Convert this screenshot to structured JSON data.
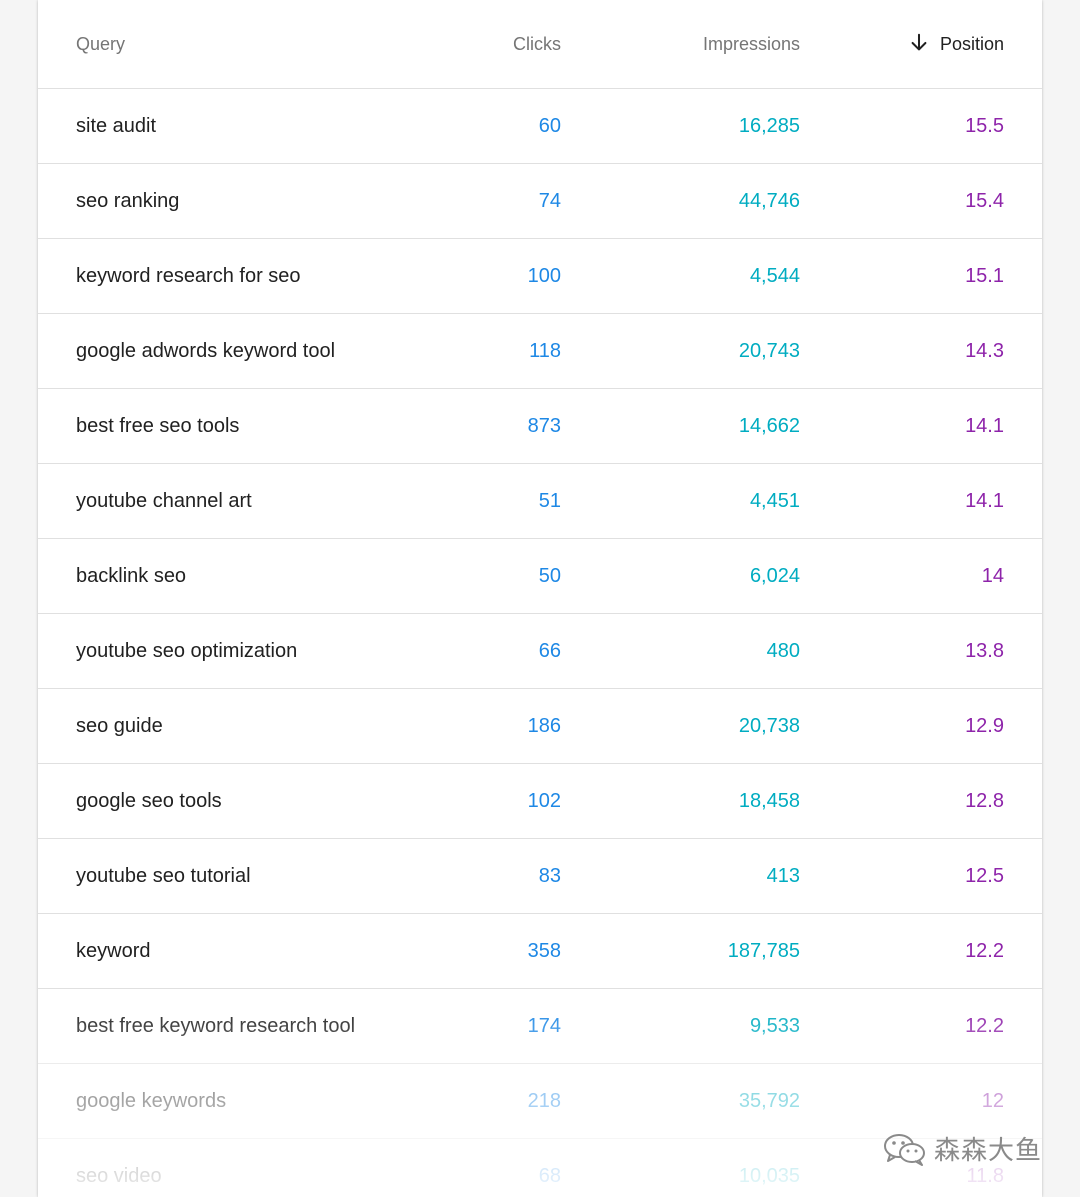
{
  "table": {
    "headers": {
      "query": "Query",
      "clicks": "Clicks",
      "impressions": "Impressions",
      "position": "Position"
    },
    "sort_icon": "arrow-down-icon",
    "rows": [
      {
        "query": "site audit",
        "clicks": "60",
        "impressions": "16,285",
        "position": "15.5"
      },
      {
        "query": "seo ranking",
        "clicks": "74",
        "impressions": "44,746",
        "position": "15.4"
      },
      {
        "query": "keyword research for seo",
        "clicks": "100",
        "impressions": "4,544",
        "position": "15.1"
      },
      {
        "query": "google adwords keyword tool",
        "clicks": "118",
        "impressions": "20,743",
        "position": "14.3"
      },
      {
        "query": "best free seo tools",
        "clicks": "873",
        "impressions": "14,662",
        "position": "14.1"
      },
      {
        "query": "youtube channel art",
        "clicks": "51",
        "impressions": "4,451",
        "position": "14.1"
      },
      {
        "query": "backlink seo",
        "clicks": "50",
        "impressions": "6,024",
        "position": "14"
      },
      {
        "query": "youtube seo optimization",
        "clicks": "66",
        "impressions": "480",
        "position": "13.8"
      },
      {
        "query": "seo guide",
        "clicks": "186",
        "impressions": "20,738",
        "position": "12.9"
      },
      {
        "query": "google seo tools",
        "clicks": "102",
        "impressions": "18,458",
        "position": "12.8"
      },
      {
        "query": "youtube seo tutorial",
        "clicks": "83",
        "impressions": "413",
        "position": "12.5"
      },
      {
        "query": "keyword",
        "clicks": "358",
        "impressions": "187,785",
        "position": "12.2"
      },
      {
        "query": "best free keyword research tool",
        "clicks": "174",
        "impressions": "9,533",
        "position": "12.2"
      },
      {
        "query": "google keywords",
        "clicks": "218",
        "impressions": "35,792",
        "position": "12"
      },
      {
        "query": "seo video",
        "clicks": "68",
        "impressions": "10,035",
        "position": "11.8"
      }
    ]
  },
  "colors": {
    "clicks": "#1e88e5",
    "impressions": "#00acc1",
    "position": "#8e24aa"
  },
  "watermark": {
    "text": "森森大鱼",
    "icon": "wechat-icon"
  }
}
